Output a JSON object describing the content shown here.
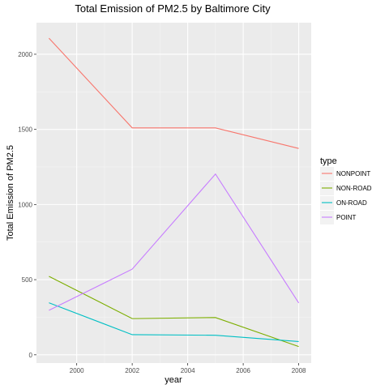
{
  "chart_data": {
    "type": "line",
    "title": "Total Emission of PM2.5 by Baltimore City",
    "xlabel": "year",
    "ylabel": "Total Emission of PM2.5",
    "x": [
      1999,
      2002,
      2005,
      2008
    ],
    "xlim": [
      1998.55,
      2008.45
    ],
    "ylim": [
      -55,
      2210
    ],
    "x_ticks": [
      2000,
      2002,
      2004,
      2006,
      2008
    ],
    "y_ticks": [
      0,
      500,
      1000,
      1500,
      2000
    ],
    "grid": true,
    "background": "#EBEBEB",
    "legend": {
      "title": "type",
      "position": "right"
    },
    "series": [
      {
        "name": "NONPOINT",
        "color": "#F8766D",
        "values": [
          2107,
          1510,
          1510,
          1373
        ]
      },
      {
        "name": "NON-ROAD",
        "color": "#7CAE00",
        "values": [
          522,
          241,
          248,
          55
        ]
      },
      {
        "name": "ON-ROAD",
        "color": "#00BFC4",
        "values": [
          346,
          134,
          130,
          88
        ]
      },
      {
        "name": "POINT",
        "color": "#C77CFF",
        "values": [
          296,
          570,
          1203,
          345
        ]
      }
    ]
  }
}
